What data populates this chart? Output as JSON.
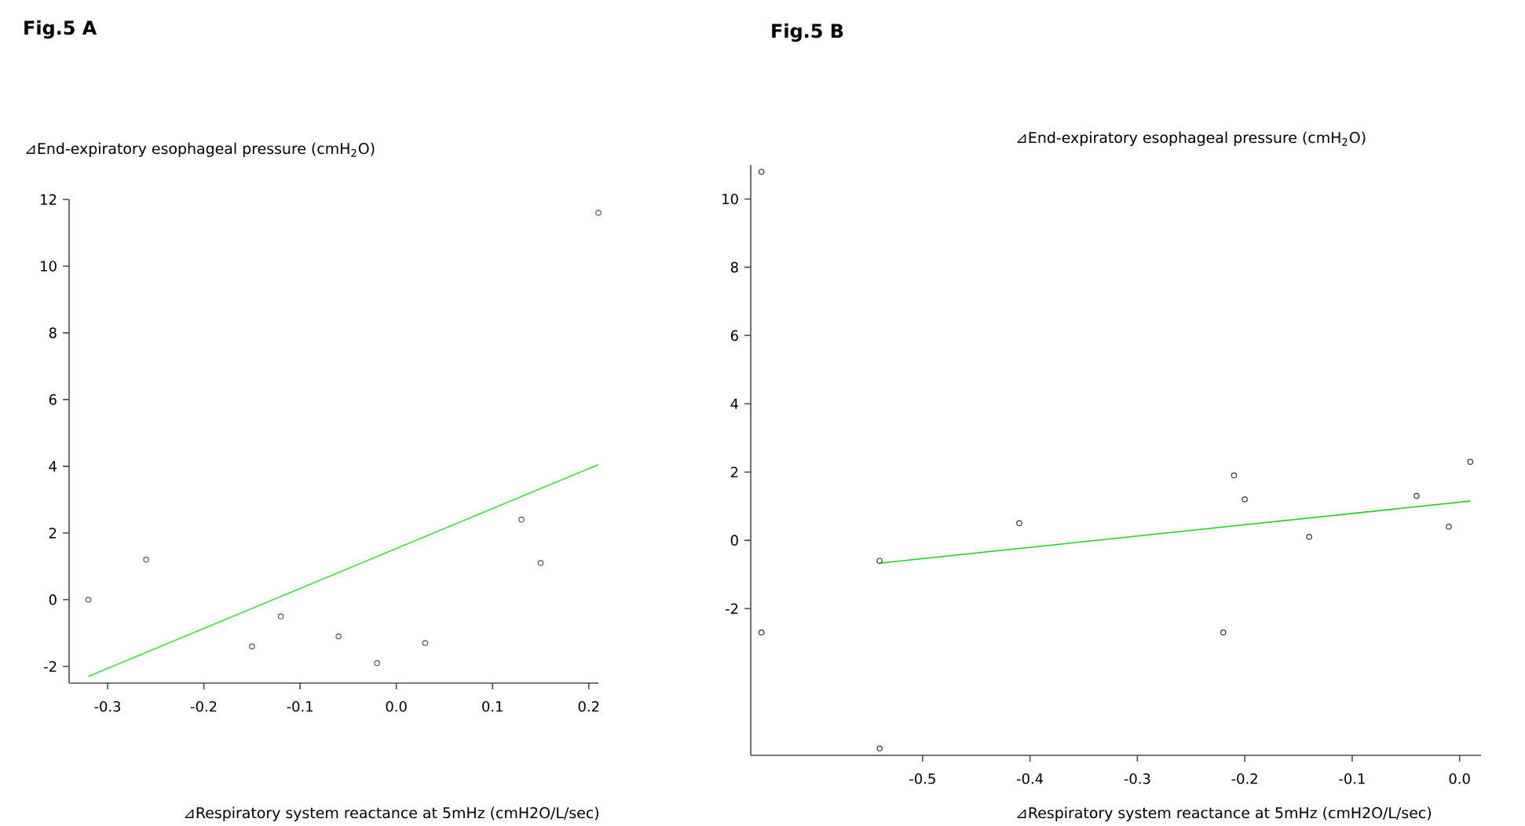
{
  "chart_data": [
    {
      "type": "scatter",
      "title": "Fig.5 A",
      "ylabel": "⊿End-expiratory esophageal pressure (cmH$_{2}$O)",
      "xlabel": "⊿Respiratory system reactance at 5mHz (cmH2O/L/sec)",
      "xlim": [
        -0.34,
        0.21
      ],
      "ylim": [
        -2.5,
        12
      ],
      "xticks": [
        -0.3,
        -0.2,
        -0.1,
        {
          "value": 0,
          "label": "0.0"
        },
        0.1,
        0.2
      ],
      "yticks": [
        -2,
        0,
        2,
        4,
        6,
        8,
        10,
        12
      ],
      "series": [
        {
          "type": "scatter",
          "color": "#555555",
          "marker": "circle",
          "x": [
            -0.32,
            -0.26,
            -0.15,
            -0.12,
            -0.06,
            -0.02,
            0.03,
            0.13,
            0.15,
            0.21
          ],
          "values": [
            0,
            1.2,
            -1.4,
            -0.5,
            -1.1,
            -1.9,
            -1.3,
            2.4,
            1.1,
            11.6
          ]
        },
        {
          "type": "line",
          "color": "#44dd44",
          "line_style": "solid",
          "marker": "none",
          "x": [
            -0.32,
            0.21
          ],
          "values": [
            -2.3,
            4.05
          ]
        }
      ]
    },
    {
      "type": "scatter",
      "title": "Fig.5 B",
      "ylabel": "⊿End-expiratory esophageal pressure (cmH$_{2}$O)",
      "xlabel": "⊿Respiratory system reactance at 5mHz (cmH2O/L/sec)",
      "xlim": [
        -0.66,
        0.02
      ],
      "ylim": [
        -6.3,
        11
      ],
      "xticks": [
        -0.5,
        -0.4,
        -0.3,
        -0.2,
        -0.1,
        {
          "value": 0,
          "label": "0.0"
        }
      ],
      "yticks": [
        -2,
        0,
        2,
        4,
        6,
        8,
        10
      ],
      "series": [
        {
          "type": "scatter",
          "color": "#333333",
          "marker": "circle",
          "x": [
            -0.54,
            -0.41,
            -0.21,
            -0.2,
            -0.22,
            -0.14,
            -0.04,
            -0.01,
            0.01,
            -0.65,
            -0.65,
            -0.54
          ],
          "values": [
            -0.6,
            0.5,
            1.9,
            1.2,
            -2.7,
            0.1,
            1.3,
            0.4,
            2.3,
            10.8,
            -2.7,
            -6.1
          ]
        },
        {
          "type": "line",
          "color": "#22cc22",
          "line_style": "solid",
          "marker": "none",
          "x": [
            -0.54,
            0.01
          ],
          "values": [
            -0.67,
            1.15
          ]
        }
      ]
    }
  ]
}
